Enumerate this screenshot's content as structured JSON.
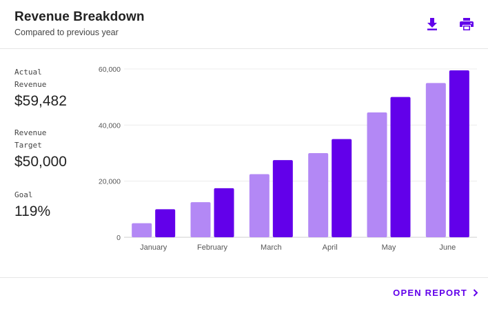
{
  "header": {
    "title": "Revenue Breakdown",
    "subtitle": "Compared to previous year",
    "download_icon": "download-icon",
    "print_icon": "print-icon"
  },
  "stats": [
    {
      "label": "Actual\nRevenue",
      "value": "$59,482"
    },
    {
      "label": "Revenue\nTarget",
      "value": "$50,000"
    },
    {
      "label": "Goal",
      "value": "119%"
    }
  ],
  "colors": {
    "previous_year": "#b388f5",
    "current_year": "#6200ea",
    "accent": "#6200ea"
  },
  "chart_data": {
    "type": "bar",
    "categories": [
      "January",
      "February",
      "March",
      "April",
      "May",
      "June"
    ],
    "series": [
      {
        "values": [
          5000,
          12500,
          22500,
          30000,
          44500,
          55000
        ]
      },
      {
        "values": [
          10000,
          17500,
          27500,
          35000,
          50000,
          59500
        ]
      }
    ],
    "yticks": [
      "60,000",
      "40,000",
      "20,000",
      "0"
    ],
    "ylim": [
      0,
      60000
    ],
    "grid": true
  },
  "footer": {
    "open_report_label": "OPEN REPORT",
    "chevron_icon": "chevron-right-icon"
  }
}
